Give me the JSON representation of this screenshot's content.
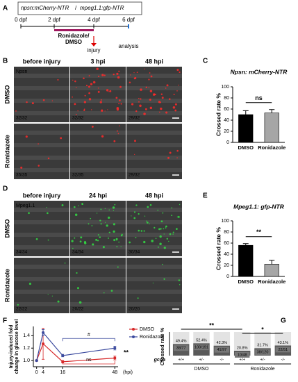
{
  "panels": [
    "A",
    "B",
    "C",
    "D",
    "E",
    "F",
    "G"
  ],
  "timeline": {
    "title_left": "npsn:mCherry-NTR",
    "separator": "/",
    "title_right": "mpeg1.1:gfp-NTR",
    "ticks": [
      "0 dpf",
      "2 dpf",
      "4 dpf",
      "6 dpf"
    ],
    "treatment": [
      "Ronidazole/",
      "DMSO"
    ],
    "injury": "injury",
    "analysis": "analysis"
  },
  "image_grids": [
    {
      "channel": "Npsn",
      "columns": [
        "before injury",
        "3 hpi",
        "48 hpi"
      ],
      "rows": [
        "DMSO",
        "Ronidazole"
      ],
      "counts": [
        [
          "32/32",
          "32/32",
          "29/32"
        ],
        [
          "35/35",
          "32/35",
          "29/32"
        ]
      ]
    },
    {
      "channel": "Mpeg1.1",
      "columns": [
        "before injury",
        "24 hpi",
        "48 hpi"
      ],
      "rows": [
        "DMSO",
        "Ronidazole"
      ],
      "counts": [
        [
          "34/34",
          "34/34",
          "30/34"
        ],
        [
          "22/22",
          "20/22",
          "20/20"
        ]
      ]
    }
  ],
  "chart_data": [
    {
      "type": "bar",
      "title": "Npsn: mCherry-NTR",
      "y_label": "Crossed rate %",
      "categories": [
        "DMSO",
        "Ronidazole"
      ],
      "values": [
        50,
        53
      ],
      "errors": [
        7,
        6
      ],
      "colors": [
        "#000000",
        "#a6a6a6"
      ],
      "ylim": [
        0,
        100
      ],
      "yticks": [
        0,
        20,
        40,
        60,
        80,
        100
      ],
      "annotation": "ns"
    },
    {
      "type": "bar",
      "title": "Mpeg1.1: gfp-NTR",
      "y_label": "Crossed rate %",
      "categories": [
        "DMSO",
        "Ronidazole"
      ],
      "values": [
        56,
        22
      ],
      "errors": [
        3,
        7
      ],
      "colors": [
        "#000000",
        "#a6a6a6"
      ],
      "ylim": [
        0,
        100
      ],
      "yticks": [
        0,
        20,
        40,
        60,
        80,
        100
      ],
      "annotation": "**"
    },
    {
      "type": "line",
      "y_label": [
        "Injury-induced fold",
        "change in glucose level"
      ],
      "x_label": "(hpi)",
      "x": [
        0,
        4,
        16,
        48
      ],
      "xlim": [
        -2,
        50
      ],
      "xticks": [
        0,
        4,
        16,
        48
      ],
      "ylim": [
        0.9,
        1.55
      ],
      "yticks": [
        {
          "value": 1,
          "label": "1.0"
        },
        {
          "value": 1.2,
          "label": "1.2"
        },
        {
          "value": 1.4,
          "label": "1.4"
        }
      ],
      "series": [
        {
          "name": "DMSO",
          "color": "#d62728",
          "values": [
            1,
            1.27,
            0.98,
            1.04
          ],
          "errors": [
            0.01,
            0.25,
            0.02,
            0.03
          ]
        },
        {
          "name": "Ronidazole",
          "color": "#3b4a9e",
          "values": [
            1,
            1.45,
            1.08,
            1.2
          ],
          "errors": [
            0.01,
            0.05,
            0.02,
            0.03
          ]
        }
      ],
      "annotations": [
        "#",
        "ns",
        "**"
      ]
    },
    {
      "type": "stacked_bar",
      "y_label": "Crossed rate %",
      "x_label": "gcga",
      "categories": [
        "+/+",
        "+/-",
        "-/-",
        "+/+",
        "+/-",
        "-/-"
      ],
      "groups": [
        "DMSO",
        "Ronidazole"
      ],
      "ylim": [
        0,
        100
      ],
      "series": [
        {
          "color": "#595959",
          "values": [
            49.4,
            52.4,
            42.3,
            20.8,
            31.7,
            43.1
          ],
          "value_labels": [
            "49.4%",
            "52.4%",
            "42.3%",
            "20.8%",
            "31.7%",
            "43.1%"
          ],
          "counts": [
            "38/77",
            "100/191",
            "41/97",
            "10/48",
            "38/120",
            "22/51"
          ]
        },
        {
          "color": "#e3e3e3",
          "values": [
            50.6,
            47.6,
            57.7,
            79.2,
            68.3,
            56.9
          ]
        }
      ],
      "annotations": [
        "**",
        "*"
      ]
    }
  ]
}
